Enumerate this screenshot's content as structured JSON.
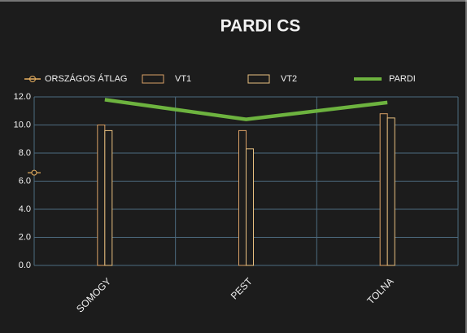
{
  "chart_data": {
    "type": "bar",
    "title": "PARDI CS",
    "categories": [
      "SOMOGY",
      "PEST",
      "TOLNA"
    ],
    "series": [
      {
        "name": "ORSZÁGOS ÁTLAG",
        "type": "line",
        "color": "#e8b060",
        "marker": true,
        "values": [
          6.6,
          null,
          null
        ]
      },
      {
        "name": "VT1",
        "type": "bar",
        "color": "#d9a066",
        "values": [
          10.0,
          9.6,
          10.8
        ]
      },
      {
        "name": "VT2",
        "type": "bar",
        "color": "#e8c080",
        "values": [
          9.6,
          8.3,
          10.5
        ]
      },
      {
        "name": "PARDI",
        "type": "line",
        "color": "#6db33f",
        "marker": false,
        "values": [
          11.8,
          10.4,
          11.6
        ]
      }
    ],
    "ylim": [
      0,
      12
    ],
    "yticks": [
      {
        "value": 0,
        "label": "0.0"
      },
      {
        "value": 2,
        "label": "2.0"
      },
      {
        "value": 4,
        "label": "4.0"
      },
      {
        "value": 6,
        "label": "6.0"
      },
      {
        "value": 8,
        "label": "8.0"
      },
      {
        "value": 10,
        "label": "10.0"
      },
      {
        "value": 12,
        "label": "12.0"
      }
    ],
    "grid": true,
    "legend": "top"
  }
}
